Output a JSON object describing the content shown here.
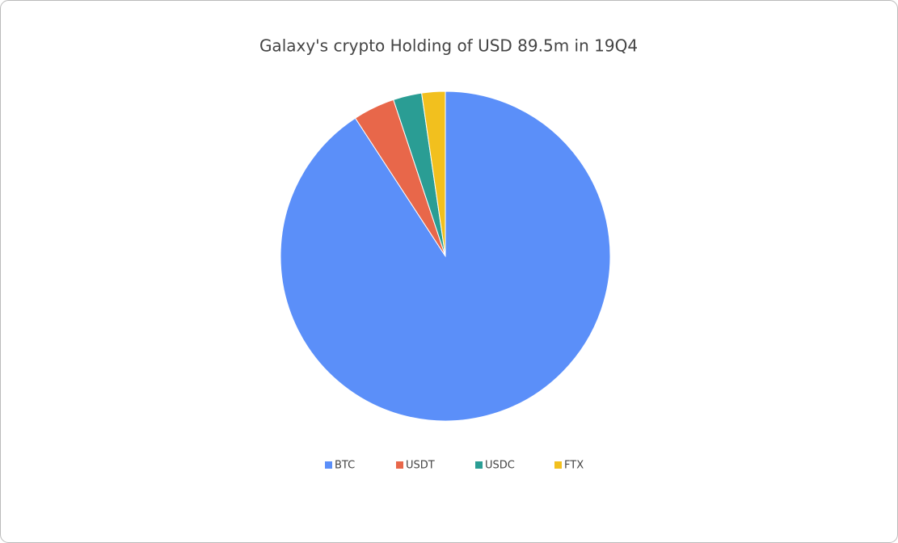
{
  "chart_data": {
    "type": "pie",
    "title": "Galaxy's crypto Holding of USD 89.5m in 19Q4",
    "categories": [
      "BTC",
      "USDT",
      "USDC",
      "FTX"
    ],
    "values": [
      90.8,
      4.1,
      2.8,
      2.3
    ],
    "colors": [
      "#5b8ff9",
      "#e8674a",
      "#2a9d94",
      "#f2c01e"
    ],
    "legend": "bottom"
  }
}
